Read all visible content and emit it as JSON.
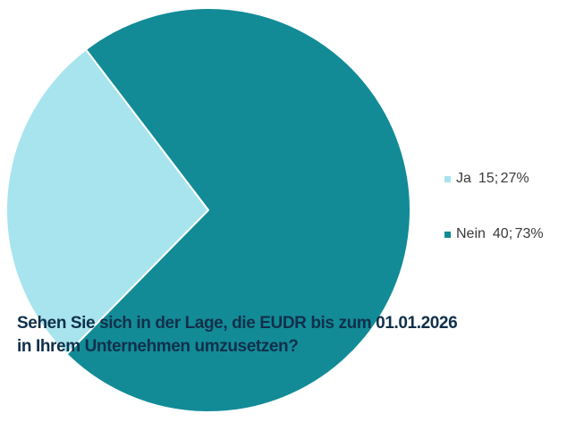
{
  "chart_data": {
    "type": "pie",
    "title_lines": [
      "Sehen Sie sich in der Lage, die EUDR bis zum 01.01.2026",
      "in Ihrem Unternehmen umzusetzen?"
    ],
    "categories": [
      "Ja",
      "Nein"
    ],
    "values": [
      15,
      40
    ],
    "percentages": [
      "27%",
      "73%"
    ],
    "legend_labels": [
      "15; 27%",
      "40; 73%"
    ],
    "colors": [
      "#a8e4ee",
      "#128b97"
    ],
    "legend_position": "right"
  }
}
